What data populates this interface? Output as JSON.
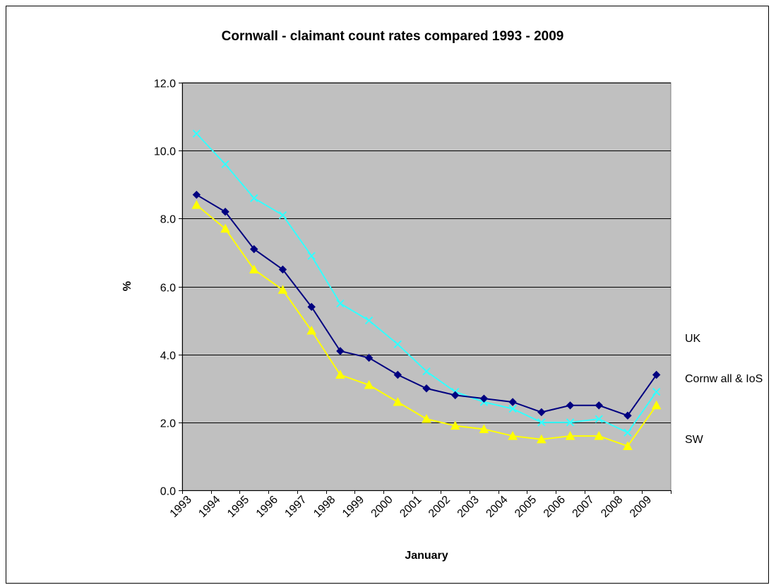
{
  "chart_data": {
    "type": "line",
    "title": "Cornwall - claimant count rates compared 1993 - 2009",
    "xlabel": "January",
    "ylabel": "%",
    "categories": [
      "1993",
      "1994",
      "1995",
      "1996",
      "1997",
      "1998",
      "1999",
      "2000",
      "2001",
      "2002",
      "2003",
      "2004",
      "2005",
      "2006",
      "2007",
      "2008",
      "2009"
    ],
    "ylim": [
      0,
      12
    ],
    "yticks": [
      "0.0",
      "2.0",
      "4.0",
      "6.0",
      "8.0",
      "10.0",
      "12.0"
    ],
    "grid": true,
    "plot_background": "#c0c0c0",
    "series": [
      {
        "name": "Cornw all & IoS",
        "color": "#000080",
        "marker": "diamond",
        "values": [
          8.7,
          8.2,
          7.1,
          6.5,
          5.4,
          4.1,
          3.9,
          3.4,
          3.0,
          2.8,
          2.7,
          2.6,
          2.3,
          2.5,
          2.5,
          2.2,
          3.4
        ]
      },
      {
        "name": "UK",
        "color": "#33ffff",
        "marker": "x",
        "values": [
          10.5,
          9.6,
          8.6,
          8.1,
          6.9,
          5.5,
          5.0,
          4.3,
          3.5,
          2.9,
          2.6,
          2.4,
          2.0,
          2.0,
          2.1,
          1.7,
          2.9
        ]
      },
      {
        "name": "SW",
        "color": "#ffff00",
        "marker": "triangle",
        "values": [
          8.4,
          7.7,
          6.5,
          5.9,
          4.7,
          3.4,
          3.1,
          2.6,
          2.1,
          1.9,
          1.8,
          1.6,
          1.5,
          1.6,
          1.6,
          1.3,
          2.5
        ]
      }
    ]
  }
}
